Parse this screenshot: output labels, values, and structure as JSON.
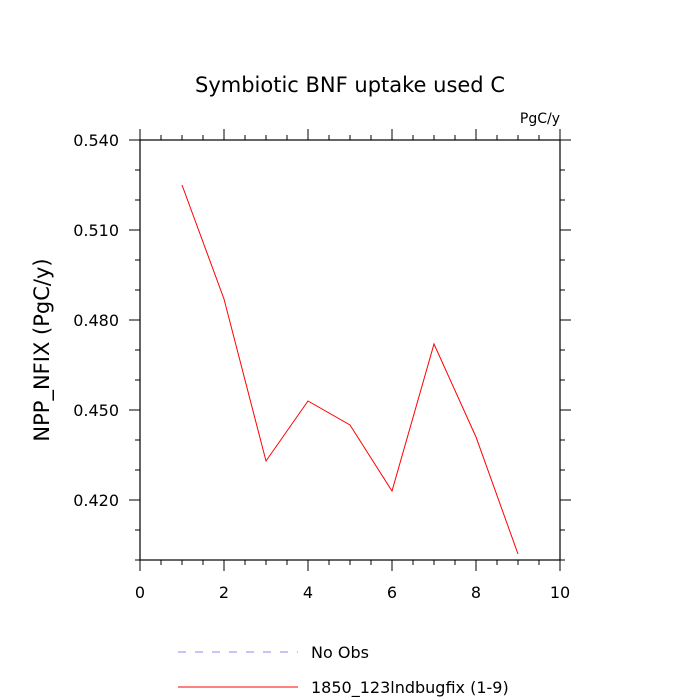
{
  "chart_data": {
    "type": "line",
    "title": "Symbiotic BNF uptake used C",
    "units": "PgC/y",
    "ylabel": "NPP_NFIX  (PgC/y)",
    "xlabel": "",
    "xlim": [
      0,
      10
    ],
    "ylim": [
      0.4,
      0.54
    ],
    "x_ticks": [
      0,
      2,
      4,
      6,
      8,
      10
    ],
    "x_tick_labels": [
      "0",
      "2",
      "4",
      "6",
      "8",
      "10"
    ],
    "y_ticks": [
      0.42,
      0.45,
      0.48,
      0.51,
      0.54
    ],
    "y_tick_labels": [
      "0.420",
      "0.450",
      "0.480",
      "0.510",
      "0.540"
    ],
    "grid": false,
    "legend_position": "bottom",
    "series": [
      {
        "name": "1850_123lndbugfix (1-9)",
        "color": "#ff0000",
        "dash": "solid",
        "x": [
          1,
          2,
          3,
          4,
          5,
          6,
          7,
          8,
          9
        ],
        "y": [
          0.525,
          0.487,
          0.433,
          0.453,
          0.445,
          0.423,
          0.472,
          0.441,
          0.402
        ]
      }
    ],
    "legend": [
      {
        "label": "No Obs",
        "color": "#8888ff",
        "dash": "dashed"
      },
      {
        "label": "1850_123lndbugfix (1-9)",
        "color": "#ff0000",
        "dash": "solid"
      }
    ]
  }
}
